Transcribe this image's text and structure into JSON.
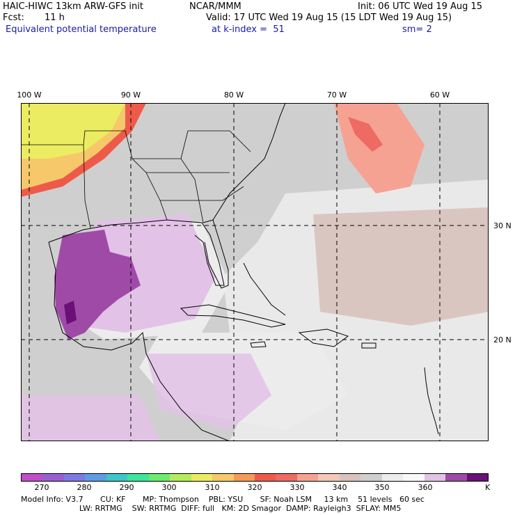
{
  "header": {
    "model": "HAIC-HIWC 13km ARW-GFS init",
    "org": "NCAR/MMM",
    "init": "Init: 06 UTC Wed 19 Aug 15",
    "fcst_label": "Fcst:",
    "fcst_value": "11 h",
    "valid": "Valid: 17 UTC Wed 19 Aug 15 (15 LDT Wed 19 Aug 15)",
    "field": "Equivalent potential temperature",
    "level": "at k-index =  51",
    "smooth": "sm= 2"
  },
  "map": {
    "lon_labels": [
      "100 W",
      "90 W",
      "80 W",
      "70 W",
      "60 W"
    ],
    "lat_labels": [
      "30 N",
      "20 N"
    ],
    "background_color": "#cfcfcf",
    "ocean_color": "#e9e9e9"
  },
  "colorbar": {
    "colors": [
      "#c04ec8",
      "#9a5fd6",
      "#7f79e6",
      "#5f9ce8",
      "#3ec6c8",
      "#3ee59a",
      "#6cec6c",
      "#b2ec5e",
      "#ecec62",
      "#f6c86a",
      "#f69a56",
      "#ee5a4a",
      "#ee6a62",
      "#f6a292",
      "#f2c8b8",
      "#d8c2bc",
      "#cfcfcf",
      "#ececec",
      "#f8f8f8",
      "#e2c2e6",
      "#a04aa8",
      "#6a1078"
    ],
    "ticks": [
      "270",
      "280",
      "290",
      "300",
      "310",
      "320",
      "330",
      "340",
      "350",
      "360"
    ],
    "unit": "K"
  },
  "footer": {
    "line1": "Model Info: V3.7       CU: KF       MP: Thompson    PBL: YSU       SF: Noah LSM     13 km    51 levels   60 sec",
    "line2": "                        LW: RRTMG    SW: RRTMG  DIFF: full   KM: 2D Smagor  DAMP: Rayleigh3  SFLAY: MM5"
  }
}
